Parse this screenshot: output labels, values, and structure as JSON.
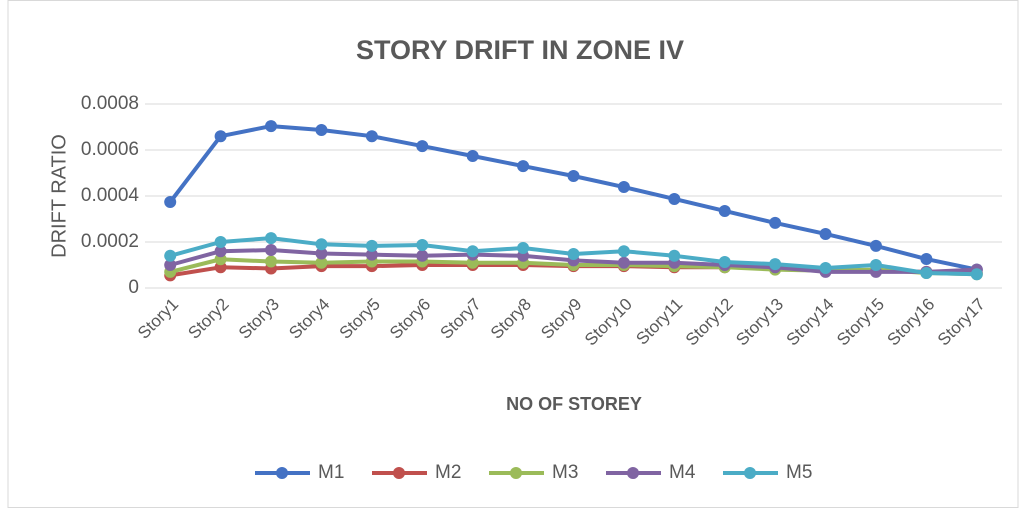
{
  "chart_data": {
    "type": "line",
    "title": "STORY DRIFT IN ZONE IV",
    "x_label": "NO OF STOREY",
    "y_label": "DRIFT RATIO",
    "categories": [
      "Story1",
      "Story2",
      "Story3",
      "Story4",
      "Story5",
      "Story6",
      "Story7",
      "Story8",
      "Story9",
      "Story10",
      "Story11",
      "Story12",
      "Story13",
      "Story14",
      "Story15",
      "Story16",
      "Story17"
    ],
    "ylim": [
      0,
      0.0008
    ],
    "yticks": [
      0,
      0.0002,
      0.0004,
      0.0006,
      0.0008
    ],
    "grid": true,
    "legend": "bottom",
    "series": [
      {
        "name": "M1",
        "color": "#4472c4",
        "values": [
          0.000374,
          0.00066,
          0.000704,
          0.000687,
          0.00066,
          0.000617,
          0.000574,
          0.00053,
          0.000487,
          0.000439,
          0.000387,
          0.000335,
          0.000283,
          0.000235,
          0.000183,
          0.000126,
          8e-05
        ]
      },
      {
        "name": "M2",
        "color": "#c0504d",
        "values": [
          5.5e-05,
          9e-05,
          8.5e-05,
          9.5e-05,
          9.5e-05,
          0.0001,
          0.0001,
          0.0001,
          9.5e-05,
          9.5e-05,
          9e-05,
          9e-05,
          8.5e-05,
          8e-05,
          7.5e-05,
          7e-05,
          6.5e-05
        ]
      },
      {
        "name": "M3",
        "color": "#9bbb59",
        "values": [
          7e-05,
          0.000125,
          0.000115,
          0.00011,
          0.000115,
          0.000115,
          0.00011,
          0.00011,
          0.0001,
          0.0001,
          9.5e-05,
          9e-05,
          8e-05,
          7.5e-05,
          8e-05,
          6.5e-05,
          6e-05
        ]
      },
      {
        "name": "M4",
        "color": "#8064a2",
        "values": [
          0.0001,
          0.00016,
          0.000165,
          0.00015,
          0.000145,
          0.00014,
          0.000145,
          0.00014,
          0.00012,
          0.00011,
          0.00011,
          0.0001,
          9e-05,
          7e-05,
          7e-05,
          7e-05,
          8e-05
        ]
      },
      {
        "name": "M5",
        "color": "#4bacc6",
        "values": [
          0.00014,
          0.0002,
          0.000217,
          0.00019,
          0.000183,
          0.000187,
          0.00016,
          0.000174,
          0.000148,
          0.00016,
          0.00014,
          0.000113,
          0.000104,
          8.7e-05,
          0.0001,
          6.5e-05,
          6e-05
        ]
      }
    ]
  }
}
